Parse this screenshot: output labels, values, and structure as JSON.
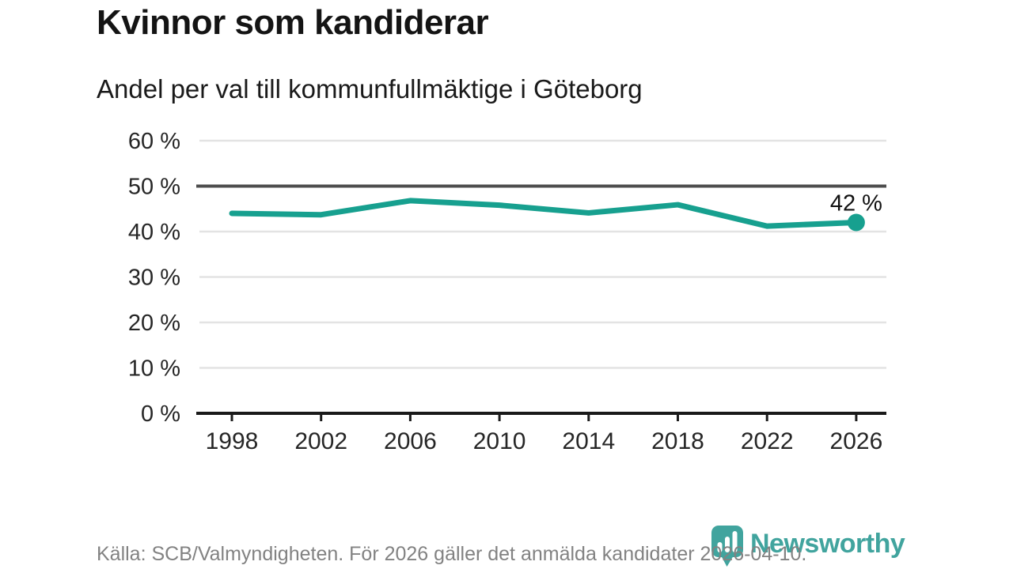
{
  "chart_data": {
    "type": "line",
    "title": "Kvinnor som kandiderar",
    "subtitle": "Andel per val till kommunfullmäktige i Göteborg",
    "x": [
      1998,
      2002,
      2006,
      2010,
      2014,
      2018,
      2022,
      2026
    ],
    "xticklabels": [
      "1998",
      "2002",
      "2006",
      "2010",
      "2014",
      "2018",
      "2022",
      "2026"
    ],
    "values": [
      44.0,
      43.7,
      46.8,
      45.8,
      44.1,
      45.9,
      41.2,
      42.0
    ],
    "ylim": [
      0,
      60
    ],
    "yticks": [
      0,
      10,
      20,
      30,
      40,
      50,
      60
    ],
    "ytick_suffix": " %",
    "emphasized_gridline": 50,
    "end_label": "42 %",
    "grid": true,
    "legend": "none"
  },
  "footer": {
    "source": "Källa: SCB/Valmyndigheten. För 2026 gäller det anmälda kandidater 2026-04-10.",
    "brand": "Newsworthy"
  },
  "colors": {
    "line": "#17a08f",
    "logo": "#41a49e",
    "grid_light": "#e3e3e3",
    "grid_dark": "#4d4d4d",
    "axis": "#1a1a1a",
    "tick_text": "#262626",
    "annotation_text": "#111111",
    "muted_text": "#828282"
  }
}
